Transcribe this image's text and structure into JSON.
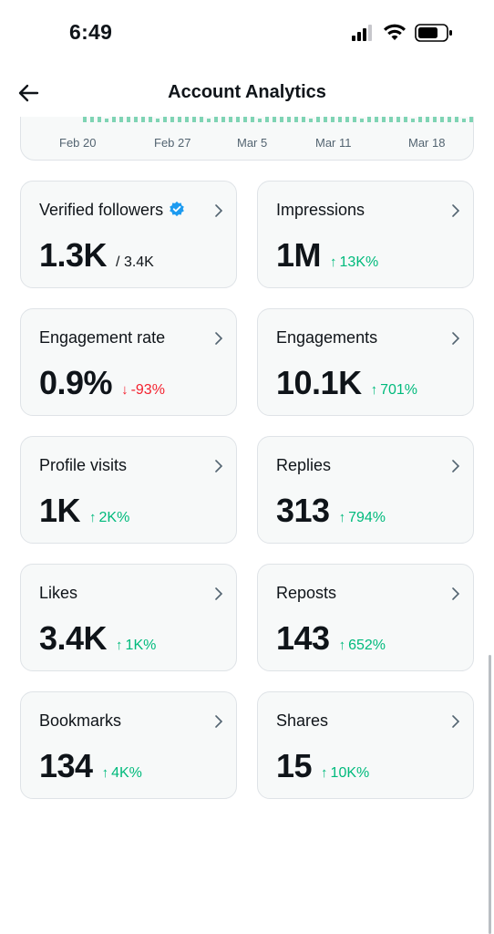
{
  "status_bar": {
    "time": "6:49"
  },
  "header": {
    "title": "Account Analytics"
  },
  "chart": {
    "x_labels": [
      "Feb 20",
      "Feb 27",
      "Mar 5",
      "Mar 11",
      "Mar 18"
    ],
    "bar_color": "#7fd4b4"
  },
  "tiles": [
    {
      "label": "Verified followers",
      "value": "1.3K",
      "sub": "/ 3.4K"
    },
    {
      "label": "Impressions",
      "value": "1M",
      "delta": "13K%",
      "direction": "up"
    },
    {
      "label": "Engagement rate",
      "value": "0.9%",
      "delta": "-93%",
      "direction": "down"
    },
    {
      "label": "Engagements",
      "value": "10.1K",
      "delta": "701%",
      "direction": "up"
    },
    {
      "label": "Profile visits",
      "value": "1K",
      "delta": "2K%",
      "direction": "up"
    },
    {
      "label": "Replies",
      "value": "313",
      "delta": "794%",
      "direction": "up"
    },
    {
      "label": "Likes",
      "value": "3.4K",
      "delta": "1K%",
      "direction": "up"
    },
    {
      "label": "Reposts",
      "value": "143",
      "delta": "652%",
      "direction": "up"
    },
    {
      "label": "Bookmarks",
      "value": "134",
      "delta": "4K%",
      "direction": "up"
    },
    {
      "label": "Shares",
      "value": "15",
      "delta": "10K%",
      "direction": "up"
    }
  ],
  "colors": {
    "up": "#00ba7c",
    "down": "#f4212e",
    "verified": "#1d9bf0"
  }
}
